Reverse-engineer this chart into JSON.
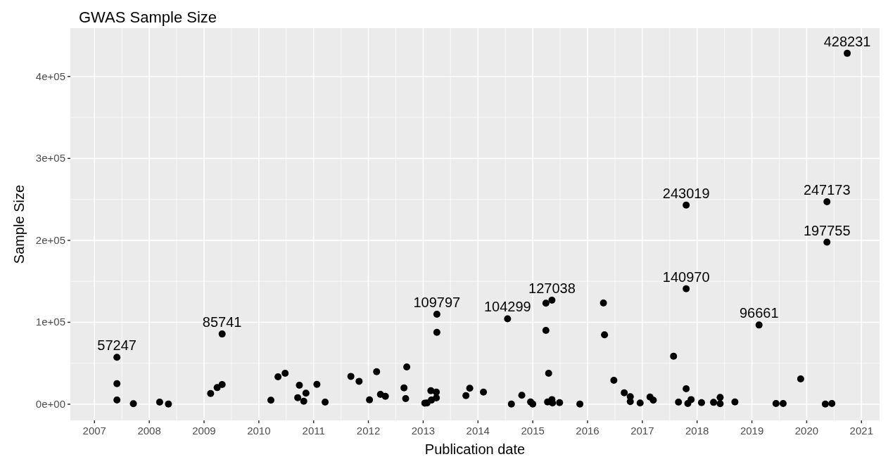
{
  "chart_data": {
    "type": "scatter",
    "title": "GWAS Sample Size",
    "xlabel": "Publication date",
    "ylabel": "Sample Size",
    "xlim": [
      2006.56,
      2021.33
    ],
    "ylim": [
      -19700,
      459000
    ],
    "xticks": [
      2007,
      2008,
      2009,
      2010,
      2011,
      2012,
      2013,
      2014,
      2015,
      2016,
      2017,
      2018,
      2019,
      2020,
      2021
    ],
    "yticks": [
      {
        "value": 0,
        "label": "0e+00"
      },
      {
        "value": 100000,
        "label": "1e+05"
      },
      {
        "value": 200000,
        "label": "2e+05"
      },
      {
        "value": 300000,
        "label": "3e+05"
      },
      {
        "value": 400000,
        "label": "4e+05"
      }
    ],
    "grid": true,
    "marker": "circle",
    "series": [
      {
        "color": "#000000",
        "x": [
          2007.41,
          2007.41,
          2007.41,
          2007.71,
          2008.19,
          2008.35,
          2009.12,
          2009.24,
          2009.33,
          2009.33,
          2010.22,
          2010.35,
          2010.48,
          2010.71,
          2010.74,
          2010.82,
          2010.86,
          2011.06,
          2011.21,
          2011.68,
          2011.83,
          2012.02,
          2012.15,
          2012.22,
          2012.31,
          2012.65,
          2012.68,
          2012.7,
          2013.03,
          2013.07,
          2013.14,
          2013.15,
          2013.24,
          2013.24,
          2013.25,
          2013.25,
          2013.78,
          2013.85,
          2014.1,
          2014.54,
          2014.61,
          2014.8,
          2014.96,
          2015.0,
          2015.24,
          2015.24,
          2015.27,
          2015.29,
          2015.35,
          2015.35,
          2015.36,
          2015.49,
          2015.86,
          2016.29,
          2016.31,
          2016.48,
          2016.67,
          2016.78,
          2016.78,
          2016.96,
          2017.14,
          2017.2,
          2017.57,
          2017.66,
          2017.8,
          2017.8,
          2017.8,
          2017.83,
          2017.89,
          2018.08,
          2018.3,
          2018.42,
          2018.42,
          2018.69,
          2019.13,
          2019.44,
          2019.57,
          2019.89,
          2020.34,
          2020.37,
          2020.37,
          2020.46,
          2020.74
        ],
        "values": [
          57247,
          25200,
          5200,
          600,
          2600,
          300,
          13100,
          20300,
          24000,
          85741,
          4900,
          33500,
          37800,
          8000,
          23200,
          3700,
          13500,
          24300,
          2600,
          34000,
          28000,
          5400,
          39700,
          12000,
          9700,
          20000,
          6900,
          45500,
          1400,
          1500,
          16600,
          5100,
          14900,
          7700,
          109797,
          87800,
          10600,
          19500,
          14900,
          104299,
          300,
          10900,
          2800,
          200,
          123300,
          90100,
          2800,
          37800,
          127038,
          5700,
          1500,
          2000,
          300,
          123600,
          84700,
          29200,
          14000,
          9200,
          3200,
          1500,
          8800,
          4900,
          58600,
          2600,
          243019,
          140970,
          18900,
          900,
          5700,
          2000,
          2300,
          8300,
          600,
          2800,
          96661,
          900,
          900,
          30900,
          200,
          247173,
          197755,
          900,
          428231
        ],
        "value_labels": [
          "57247",
          null,
          null,
          null,
          null,
          null,
          null,
          null,
          null,
          "85741",
          null,
          null,
          null,
          null,
          null,
          null,
          null,
          null,
          null,
          null,
          null,
          null,
          null,
          null,
          null,
          null,
          null,
          null,
          null,
          null,
          null,
          null,
          null,
          null,
          "109797",
          null,
          null,
          null,
          null,
          "104299",
          null,
          null,
          null,
          null,
          null,
          null,
          null,
          null,
          "127038",
          null,
          null,
          null,
          null,
          null,
          null,
          null,
          null,
          null,
          null,
          null,
          null,
          null,
          null,
          null,
          "243019",
          "140970",
          null,
          null,
          null,
          null,
          null,
          null,
          null,
          null,
          "96661",
          null,
          null,
          null,
          null,
          "247173",
          "197755",
          null,
          "428231"
        ]
      }
    ]
  }
}
